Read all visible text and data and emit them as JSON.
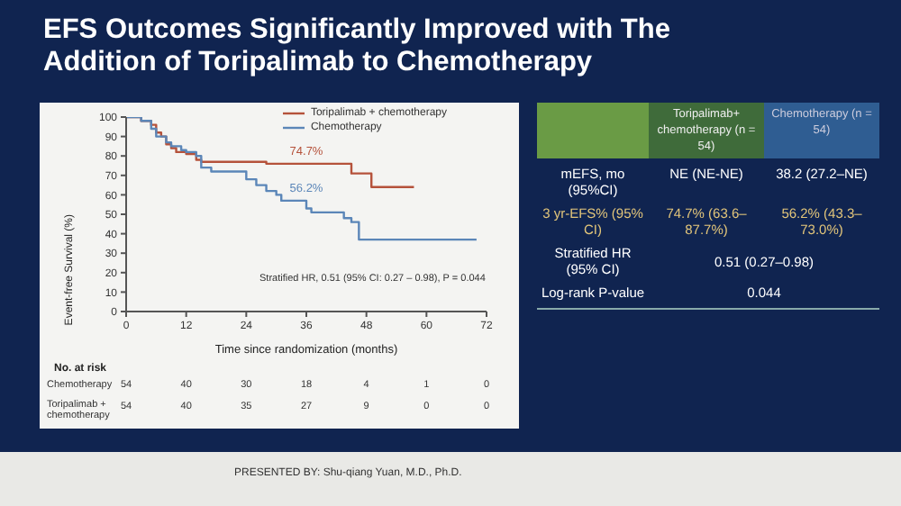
{
  "chart_data": {
    "type": "step",
    "title": "EFS Outcomes Significantly Improved with The Addition of Toripalimab to Chemotherapy",
    "xlabel": "Time since randomization (months)",
    "ylabel": "Event-free Survival (%)",
    "xlim": [
      0,
      72
    ],
    "xticks": [
      0,
      12,
      24,
      36,
      48,
      60,
      72
    ],
    "ylim": [
      0,
      100
    ],
    "yticks": [
      0,
      10,
      20,
      30,
      40,
      50,
      60,
      70,
      80,
      90,
      100
    ],
    "grid": false,
    "legend": "top right",
    "marker": "none",
    "line_style": "solid",
    "series": [
      {
        "name": "Toripalimab + chemotherapy",
        "color": "#b5523b",
        "x": [
          0,
          3,
          5,
          6,
          7,
          8,
          9,
          10,
          12,
          14,
          15,
          28,
          45,
          49,
          57.5
        ],
        "values": [
          100,
          98,
          96,
          92,
          90,
          86,
          84,
          82,
          81,
          78,
          77,
          76,
          71,
          64,
          64
        ]
      },
      {
        "name": "Chemotherapy",
        "color": "#5b86b8",
        "x": [
          0,
          3,
          5,
          6,
          8,
          9,
          11,
          12,
          14,
          15,
          17,
          24,
          26,
          28,
          30,
          31,
          36,
          37,
          38.5,
          43.5,
          45,
          46.5,
          70
        ],
        "values": [
          100,
          98,
          94,
          90,
          87,
          85,
          83,
          82,
          80,
          74,
          72,
          68,
          65,
          62,
          60,
          57,
          53,
          51,
          51,
          48,
          46,
          37,
          37
        ]
      }
    ],
    "annotations": [
      "Toripalimab+ chemotherapy (n = 54)",
      "Chemotherapy (n = 54)",
      "mEFS, mo (95%CI)",
      "NE (NE-NE)",
      "38.2 (27.2–NE)",
      "3 yr-EFS% (95% CI)",
      "74.7% (63.6–87.7%)",
      "56.2% (43.3–73.0%)",
      "Stratified HR (95% CI)",
      "0.51 (0.27–0.98)",
      "Log-rank P-value",
      "0.044",
      "Stratified HR, 0.51 (95% CI: 0.27 – 0.98), P = 0.044",
      {
        "text": "74.7%",
        "x": 36,
        "y": 76
      },
      {
        "text": "56.2%",
        "x": 36,
        "y": 57
      },
      "No. at risk",
      "Chemotherapy",
      "Toripalimab + chemotherapy",
      "54",
      "40",
      "30",
      "18",
      "4",
      "1",
      "0",
      "54",
      "40",
      "35",
      "27",
      "9",
      "0",
      "0",
      "PRESENTED BY: Shu-qiang Yuan, M.D., Ph.D."
    ]
  }
}
